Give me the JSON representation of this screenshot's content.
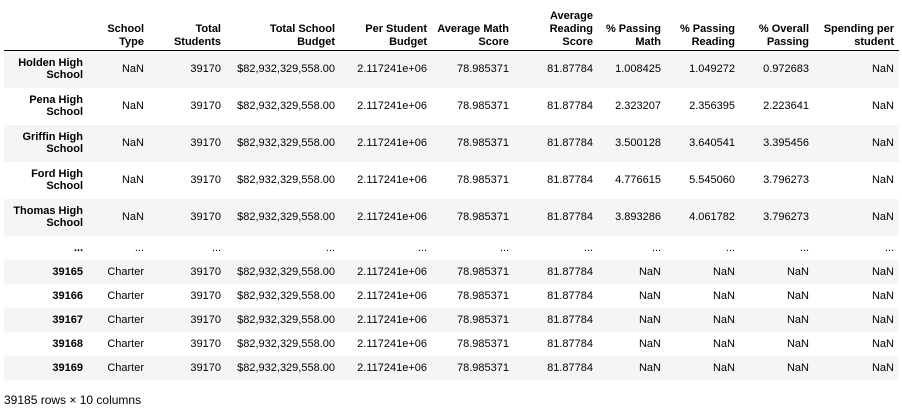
{
  "columns": [
    "",
    "School Type",
    "Total Students",
    "Total School Budget",
    "Per Student Budget",
    "Average Math Score",
    "Average Reading Score",
    "% Passing Math",
    "% Passing Reading",
    "% Overall Passing",
    "Spending per student"
  ],
  "rows": [
    [
      "Holden High School",
      "NaN",
      "39170",
      "$82,932,329,558.00",
      "2.117241e+06",
      "78.985371",
      "81.87784",
      "1.008425",
      "1.049272",
      "0.972683",
      "NaN"
    ],
    [
      "Pena High School",
      "NaN",
      "39170",
      "$82,932,329,558.00",
      "2.117241e+06",
      "78.985371",
      "81.87784",
      "2.323207",
      "2.356395",
      "2.223641",
      "NaN"
    ],
    [
      "Griffin High School",
      "NaN",
      "39170",
      "$82,932,329,558.00",
      "2.117241e+06",
      "78.985371",
      "81.87784",
      "3.500128",
      "3.640541",
      "3.395456",
      "NaN"
    ],
    [
      "Ford High School",
      "NaN",
      "39170",
      "$82,932,329,558.00",
      "2.117241e+06",
      "78.985371",
      "81.87784",
      "4.776615",
      "5.545060",
      "3.796273",
      "NaN"
    ],
    [
      "Thomas High School",
      "NaN",
      "39170",
      "$82,932,329,558.00",
      "2.117241e+06",
      "78.985371",
      "81.87784",
      "3.893286",
      "4.061782",
      "3.796273",
      "NaN"
    ],
    [
      "...",
      "...",
      "...",
      "...",
      "...",
      "...",
      "...",
      "...",
      "...",
      "...",
      "..."
    ],
    [
      "39165",
      "Charter",
      "39170",
      "$82,932,329,558.00",
      "2.117241e+06",
      "78.985371",
      "81.87784",
      "NaN",
      "NaN",
      "NaN",
      "NaN"
    ],
    [
      "39166",
      "Charter",
      "39170",
      "$82,932,329,558.00",
      "2.117241e+06",
      "78.985371",
      "81.87784",
      "NaN",
      "NaN",
      "NaN",
      "NaN"
    ],
    [
      "39167",
      "Charter",
      "39170",
      "$82,932,329,558.00",
      "2.117241e+06",
      "78.985371",
      "81.87784",
      "NaN",
      "NaN",
      "NaN",
      "NaN"
    ],
    [
      "39168",
      "Charter",
      "39170",
      "$82,932,329,558.00",
      "2.117241e+06",
      "78.985371",
      "81.87784",
      "NaN",
      "NaN",
      "NaN",
      "NaN"
    ],
    [
      "39169",
      "Charter",
      "39170",
      "$82,932,329,558.00",
      "2.117241e+06",
      "78.985371",
      "81.87784",
      "NaN",
      "NaN",
      "NaN",
      "NaN"
    ]
  ],
  "shape_text": "39185 rows × 10 columns"
}
